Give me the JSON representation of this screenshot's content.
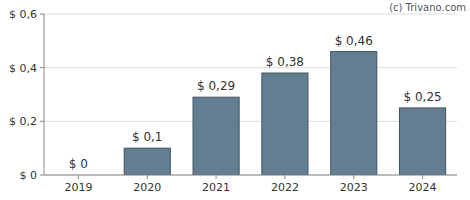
{
  "chart_data": {
    "type": "bar",
    "annotation": "(c) Trivano.com",
    "categories": [
      "2019",
      "2020",
      "2021",
      "2022",
      "2023",
      "2024"
    ],
    "values": [
      0,
      0.1,
      0.29,
      0.38,
      0.46,
      0.25
    ],
    "value_labels": [
      "$ 0",
      "$ 0,1",
      "$ 0,29",
      "$ 0,38",
      "$ 0,46",
      "$ 0,25"
    ],
    "color": "#637d91",
    "ylim": [
      0,
      0.6
    ],
    "yticks": [
      {
        "value": 0,
        "label": "$ 0"
      },
      {
        "value": 0.2,
        "label": "$ 0,2"
      },
      {
        "value": 0.4,
        "label": "$ 0,4"
      },
      {
        "value": 0.6,
        "label": "$ 0,6"
      }
    ],
    "grid": true,
    "data_labels": true
  }
}
